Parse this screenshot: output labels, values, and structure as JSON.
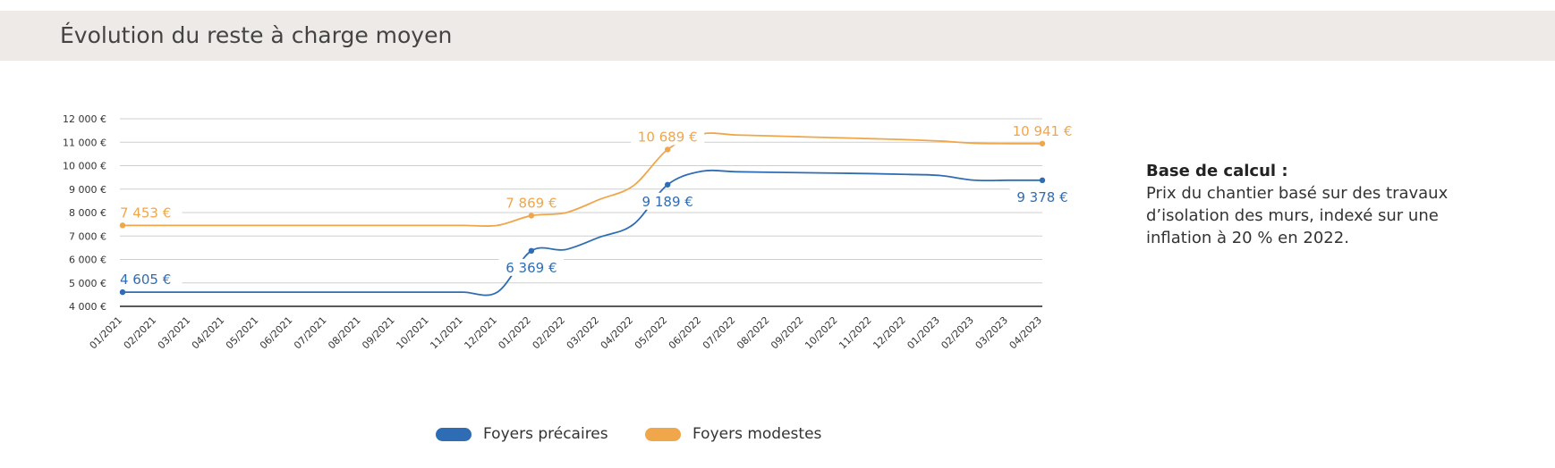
{
  "header": {
    "title": "Évolution du reste à charge moyen"
  },
  "chart_data": {
    "type": "line",
    "categories": [
      "01/2021",
      "02/2021",
      "03/2021",
      "04/2021",
      "05/2021",
      "06/2021",
      "07/2021",
      "08/2021",
      "09/2021",
      "10/2021",
      "11/2021",
      "12/2021",
      "01/2022",
      "02/2022",
      "03/2022",
      "04/2022",
      "05/2022",
      "06/2022",
      "07/2022",
      "08/2022",
      "09/2022",
      "10/2022",
      "11/2022",
      "12/2022",
      "01/2023",
      "02/2023",
      "03/2023",
      "04/2023"
    ],
    "y_ticks": [
      4000,
      5000,
      6000,
      7000,
      8000,
      9000,
      10000,
      11000,
      12000
    ],
    "y_tick_labels": [
      "4 000 €",
      "5 000 €",
      "6 000 €",
      "7 000 €",
      "8 000 €",
      "9 000 €",
      "10 000 €",
      "11 000 €",
      "12 000 €"
    ],
    "ylim": [
      4000,
      12000
    ],
    "grid": true,
    "legend_position": "bottom",
    "series": [
      {
        "name": "Foyers précaires",
        "color": "#2e6db4",
        "values": [
          4605,
          4605,
          4605,
          4605,
          4605,
          4605,
          4605,
          4605,
          4605,
          4605,
          4605,
          4605,
          6369,
          6420,
          6950,
          7500,
          9189,
          9760,
          9740,
          9720,
          9700,
          9680,
          9660,
          9630,
          9580,
          9380,
          9378,
          9378
        ],
        "labeled_points": [
          {
            "index": 0,
            "label": "4 605 €",
            "pos": "above"
          },
          {
            "index": 12,
            "label": "6 369 €",
            "pos": "below"
          },
          {
            "index": 16,
            "label": "9 189 €",
            "pos": "below"
          },
          {
            "index": 27,
            "label": "9 378 €",
            "pos": "below"
          }
        ]
      },
      {
        "name": "Foyers modestes",
        "color": "#f0a64b",
        "values": [
          7453,
          7453,
          7453,
          7453,
          7453,
          7453,
          7453,
          7453,
          7453,
          7453,
          7453,
          7453,
          7869,
          7990,
          8560,
          9150,
          10689,
          11350,
          11310,
          11270,
          11230,
          11190,
          11150,
          11110,
          11050,
          10960,
          10941,
          10941
        ],
        "labeled_points": [
          {
            "index": 0,
            "label": "7 453 €",
            "pos": "above"
          },
          {
            "index": 12,
            "label": "7 869 €",
            "pos": "above"
          },
          {
            "index": 16,
            "label": "10 689 €",
            "pos": "above"
          },
          {
            "index": 27,
            "label": "10 941 €",
            "pos": "above"
          }
        ]
      }
    ]
  },
  "note": {
    "heading": "Base de calcul :",
    "text": "Prix du chantier basé sur des travaux d’isolation des murs, indexé sur une inflation à 20 % en 2022."
  },
  "legend": [
    {
      "label": "Foyers précaires",
      "color": "#2e6db4"
    },
    {
      "label": "Foyers modestes",
      "color": "#f0a64b"
    }
  ]
}
